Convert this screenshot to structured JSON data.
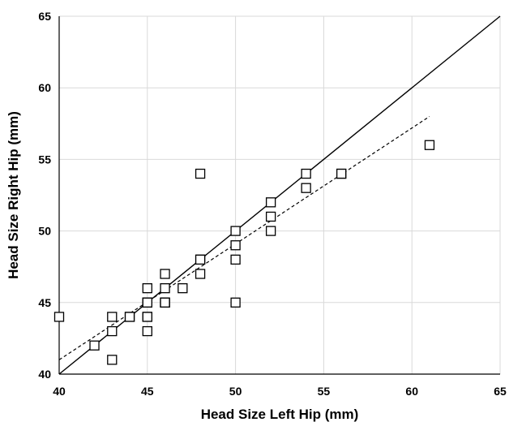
{
  "chart_data": {
    "type": "scatter",
    "title": "",
    "xlabel": "Head Size Left Hip (mm)",
    "ylabel": "Head Size Right Hip (mm)",
    "xlim": [
      40,
      65
    ],
    "ylim": [
      40,
      65
    ],
    "xticks": [
      40,
      45,
      50,
      55,
      60,
      65
    ],
    "yticks": [
      40,
      45,
      50,
      55,
      60,
      65
    ],
    "grid": true,
    "points": [
      [
        40,
        44
      ],
      [
        42,
        42
      ],
      [
        43,
        44
      ],
      [
        43,
        43
      ],
      [
        43,
        41
      ],
      [
        44,
        44
      ],
      [
        44,
        44
      ],
      [
        45,
        45
      ],
      [
        45,
        46
      ],
      [
        45,
        45
      ],
      [
        45,
        44
      ],
      [
        45,
        43
      ],
      [
        45,
        45
      ],
      [
        45,
        45
      ],
      [
        45,
        44
      ],
      [
        46,
        47
      ],
      [
        46,
        46
      ],
      [
        46,
        45
      ],
      [
        46,
        45
      ],
      [
        46,
        45
      ],
      [
        47,
        46
      ],
      [
        48,
        54
      ],
      [
        48,
        48
      ],
      [
        48,
        48
      ],
      [
        48,
        47
      ],
      [
        50,
        50
      ],
      [
        50,
        49
      ],
      [
        50,
        48
      ],
      [
        50,
        45
      ],
      [
        52,
        52
      ],
      [
        52,
        51
      ],
      [
        52,
        50
      ],
      [
        54,
        54
      ],
      [
        54,
        53
      ],
      [
        56,
        54
      ],
      [
        56,
        54
      ],
      [
        61,
        56
      ]
    ],
    "lines": [
      {
        "style": "solid",
        "color": "#000000",
        "x": [
          40,
          65
        ],
        "y": [
          40,
          65
        ]
      },
      {
        "style": "dashed",
        "color": "#000000",
        "x": [
          40,
          61
        ],
        "y": [
          41,
          58
        ]
      }
    ]
  }
}
